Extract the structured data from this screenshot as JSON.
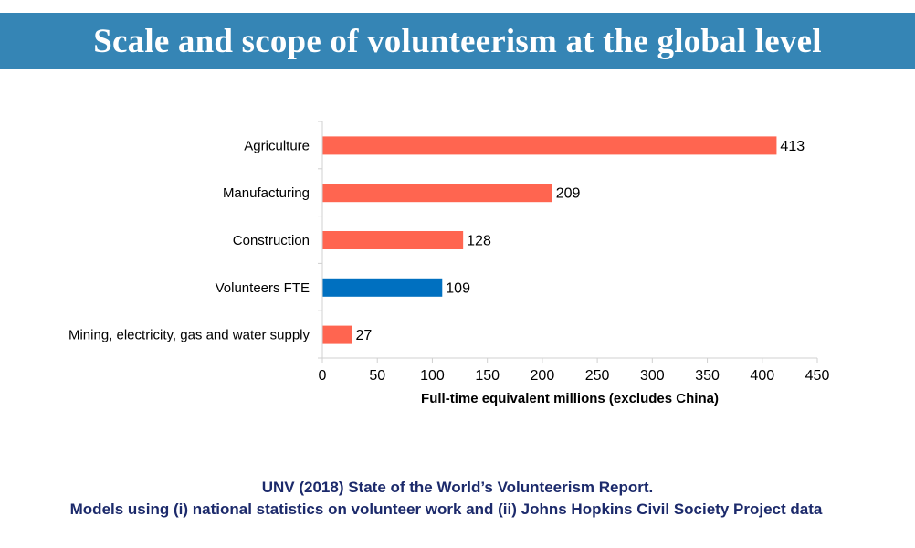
{
  "header": {
    "title": "Scale and scope of volunteerism at the global level",
    "background_color": "#3585b5"
  },
  "chart_data": {
    "type": "bar",
    "orientation": "horizontal",
    "title": "",
    "categories": [
      "Agriculture",
      "Manufacturing",
      "Construction",
      "Volunteers FTE",
      "Mining, electricity, gas and water supply"
    ],
    "values": [
      413,
      209,
      128,
      109,
      27
    ],
    "colors": [
      "#ff6550",
      "#ff6550",
      "#ff6550",
      "#0070c0",
      "#ff6550"
    ],
    "data_labels": [
      "413",
      "209",
      "128",
      "109",
      "27"
    ],
    "xlabel": "Full-time equivalent millions (excludes China)",
    "ylabel": "",
    "xlim": [
      0,
      450
    ],
    "xticks": [
      0,
      50,
      100,
      150,
      200,
      250,
      300,
      350,
      400,
      450
    ],
    "xtick_labels": [
      "0",
      "50",
      "100",
      "150",
      "200",
      "250",
      "300",
      "350",
      "400",
      "450"
    ],
    "grid": false,
    "legend": "none"
  },
  "footer": {
    "line1": "UNV (2018) State of the World’s Volunteerism Report.",
    "line2": "Models using (i) national statistics on volunteer work and (ii)  Johns Hopkins Civil Society Project data"
  }
}
